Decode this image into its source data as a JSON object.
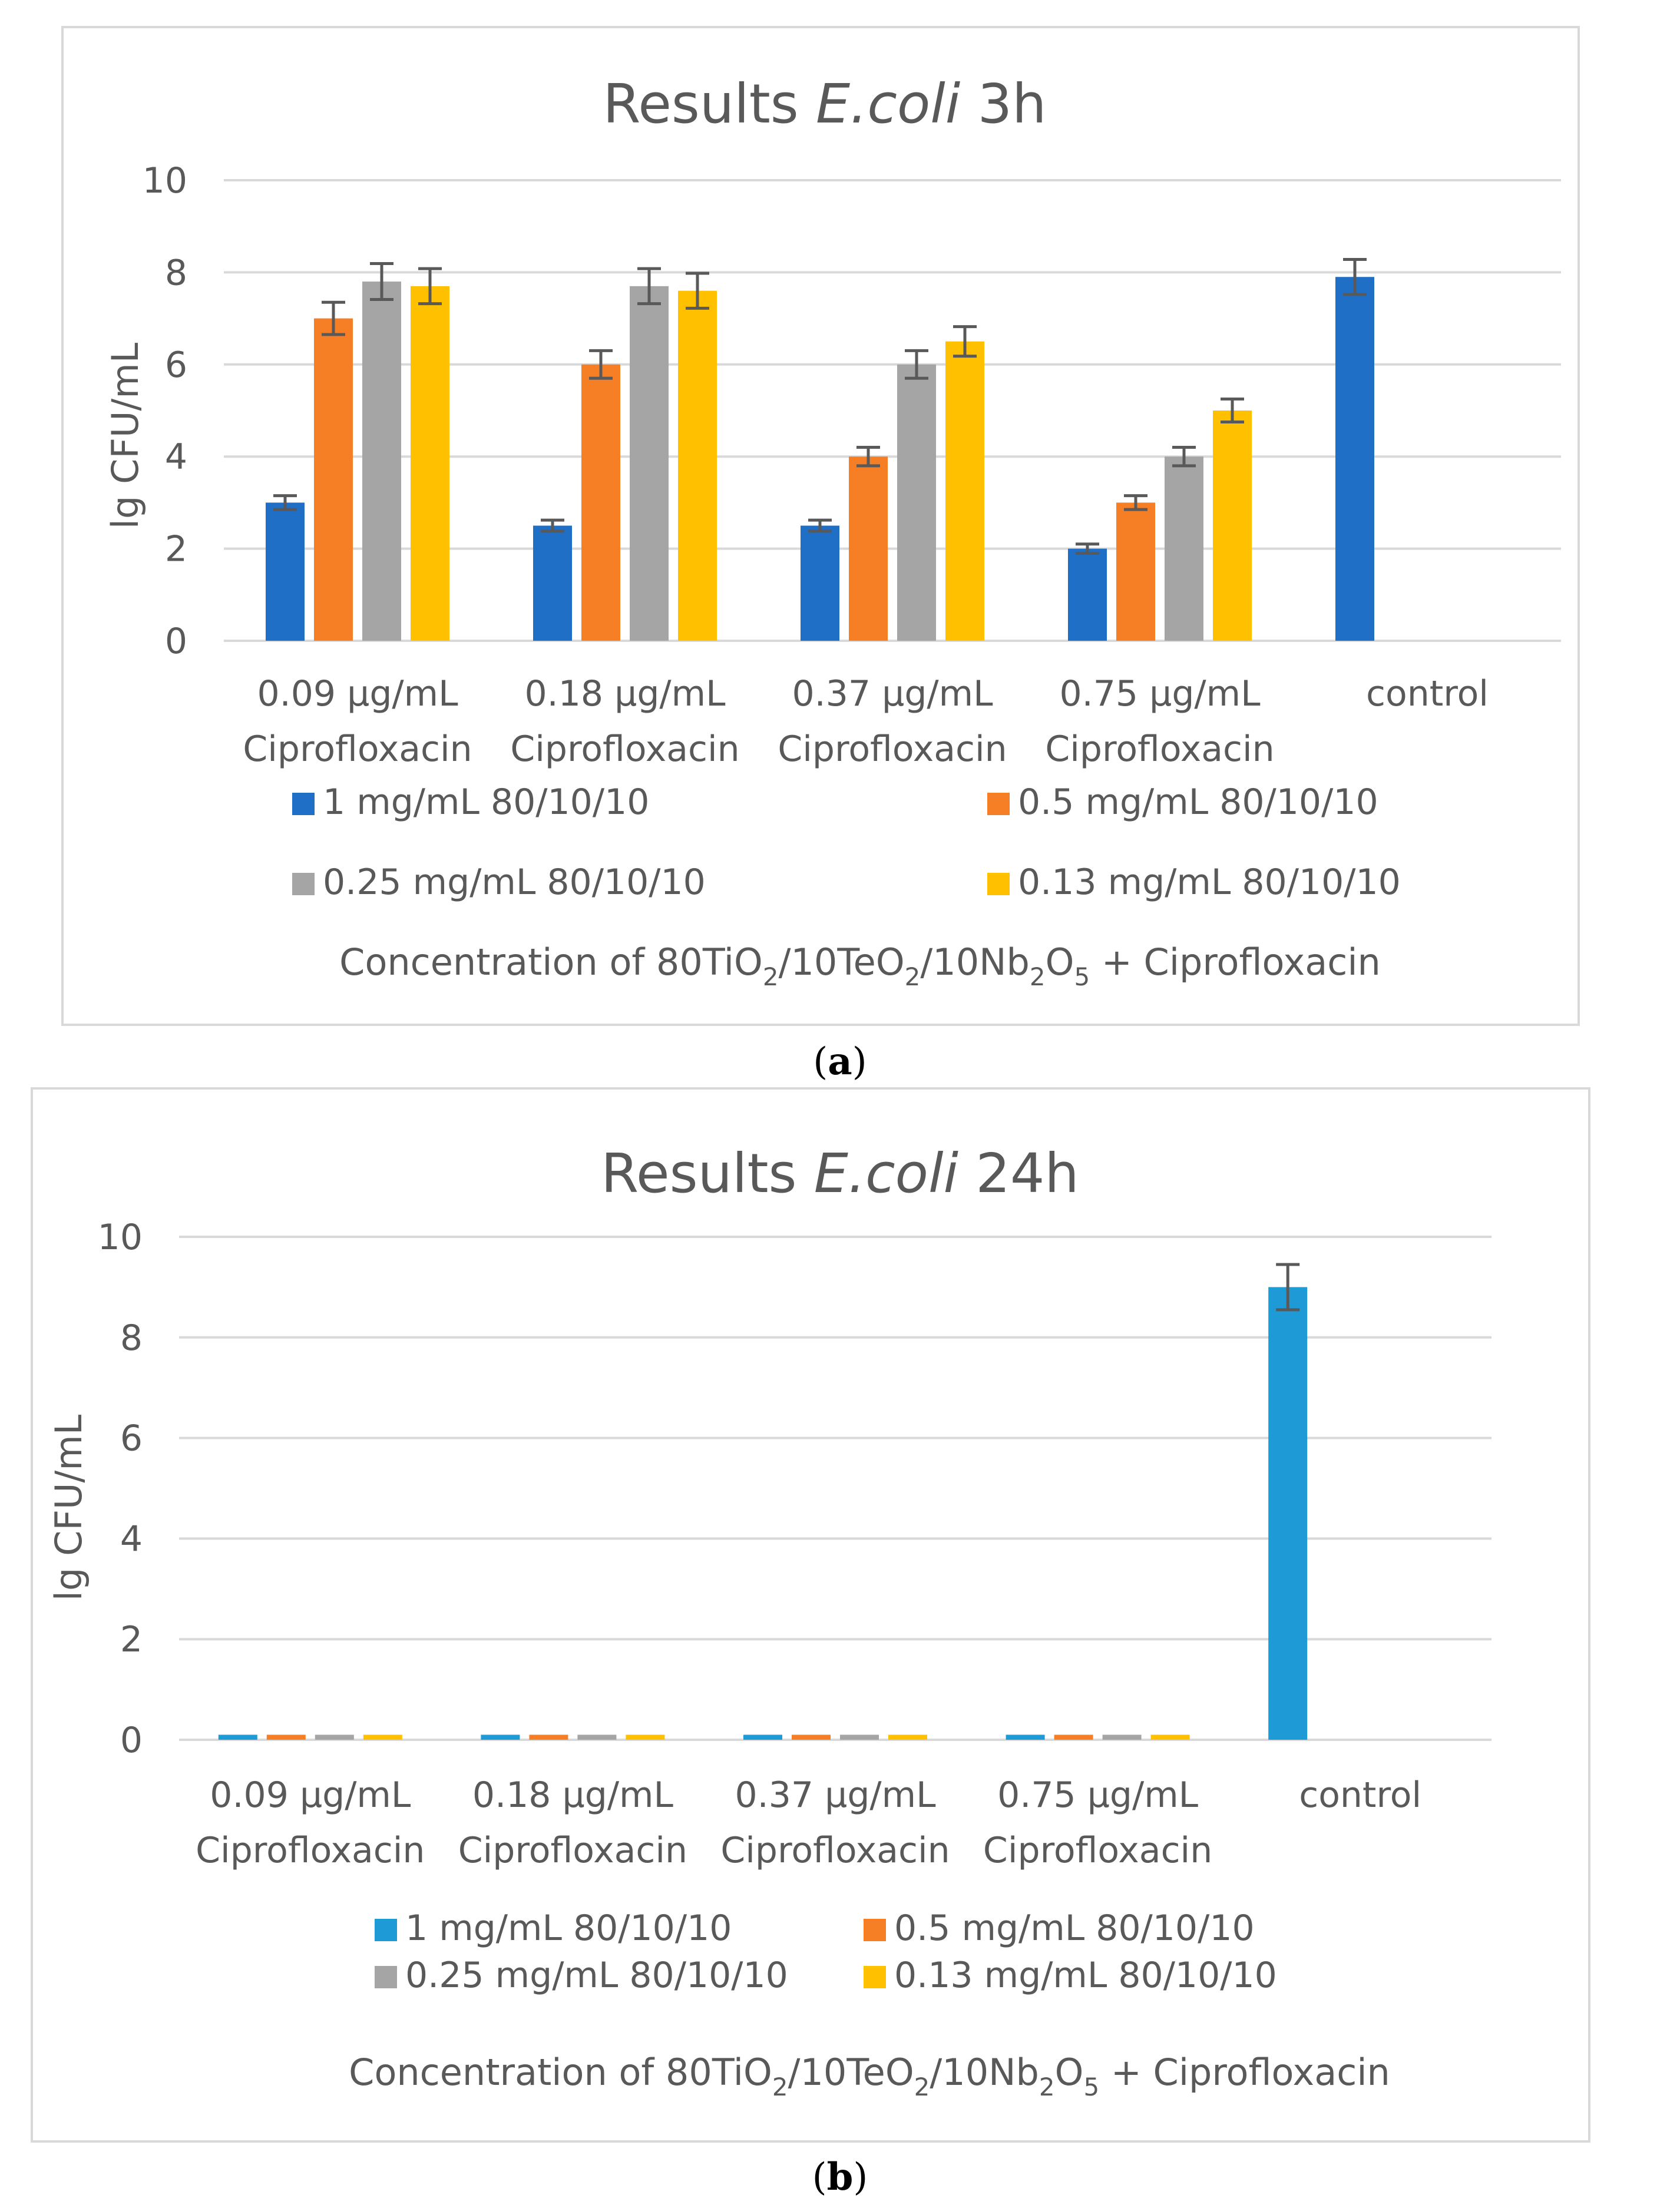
{
  "chart_data": [
    {
      "type": "bar",
      "panel_label": "(a)",
      "title": {
        "prefix": "Results ",
        "italic": "E.coli",
        "suffix": " 3h"
      },
      "ylabel": "lg  CFU/mL",
      "xlabel": {
        "text": "Concentration of 80TiO",
        "sub1": "2",
        "mid1": "/10TeO",
        "sub2": "2",
        "mid2": "/10Nb",
        "sub3": "2",
        "mid3": "O",
        "sub4": "5",
        "end": " + Ciprofloxacin"
      },
      "ylim": [
        0,
        10
      ],
      "yticks": [
        "0",
        "2",
        "4",
        "6",
        "8",
        "10"
      ],
      "grid": true,
      "legend_position": "bottom",
      "categories": [
        [
          "0.09 µg/mL",
          "Ciprofloxacin"
        ],
        [
          "0.18 µg/mL",
          "Ciprofloxacin"
        ],
        [
          "0.37 µg/mL",
          "Ciprofloxacin"
        ],
        [
          "0.75 µg/mL",
          "Ciprofloxacin"
        ],
        [
          "control"
        ]
      ],
      "series": [
        {
          "name": "1 mg/mL 80/10/10",
          "color": "#1f6fc6",
          "values": [
            3.0,
            2.5,
            2.5,
            2.0,
            7.9
          ],
          "errors": [
            0.15,
            0.12,
            0.12,
            0.1,
            0.38
          ]
        },
        {
          "name": "0.5 mg/mL 80/10/10",
          "color": "#f67e25",
          "values": [
            7.0,
            6.0,
            4.0,
            3.0,
            null
          ],
          "errors": [
            0.35,
            0.3,
            0.2,
            0.15,
            null
          ]
        },
        {
          "name": "0.25 mg/mL 80/10/10",
          "color": "#a5a5a5",
          "values": [
            7.8,
            7.7,
            6.0,
            4.0,
            null
          ],
          "errors": [
            0.39,
            0.38,
            0.3,
            0.2,
            null
          ]
        },
        {
          "name": "0.13 mg/mL 80/10/10",
          "color": "#ffc000",
          "values": [
            7.7,
            7.6,
            6.5,
            5.0,
            null
          ],
          "errors": [
            0.38,
            0.38,
            0.32,
            0.25,
            null
          ]
        }
      ]
    },
    {
      "type": "bar",
      "panel_label": "(b)",
      "title": {
        "prefix": "Results ",
        "italic": "E.coli",
        "suffix": " 24h"
      },
      "ylabel": "lg  CFU/mL",
      "xlabel": {
        "text": "Concentration of 80TiO",
        "sub1": "2",
        "mid1": "/10TeO",
        "sub2": "2",
        "mid2": "/10Nb",
        "sub3": "2",
        "mid3": "O",
        "sub4": "5",
        "end": " + Ciprofloxacin"
      },
      "ylim": [
        0,
        10
      ],
      "yticks": [
        "0",
        "2",
        "4",
        "6",
        "8",
        "10"
      ],
      "grid": true,
      "legend_position": "bottom",
      "categories": [
        [
          "0.09 µg/mL",
          "Ciprofloxacin"
        ],
        [
          "0.18 µg/mL",
          "Ciprofloxacin"
        ],
        [
          "0.37 µg/mL",
          "Ciprofloxacin"
        ],
        [
          "0.75 µg/mL",
          "Ciprofloxacin"
        ],
        [
          "control"
        ]
      ],
      "series": [
        {
          "name": "1 mg/mL 80/10/10",
          "color": "#1e9bd7",
          "values": [
            0.1,
            0.1,
            0.1,
            0.1,
            9.0
          ],
          "errors": [
            0,
            0,
            0,
            0,
            0.45
          ]
        },
        {
          "name": "0.5 mg/mL 80/10/10",
          "color": "#f67e25",
          "values": [
            0.1,
            0.1,
            0.1,
            0.1,
            null
          ],
          "errors": [
            0,
            0,
            0,
            0,
            null
          ]
        },
        {
          "name": "0.25 mg/mL 80/10/10",
          "color": "#a5a5a5",
          "values": [
            0.1,
            0.1,
            0.1,
            0.1,
            null
          ],
          "errors": [
            0,
            0,
            0,
            0,
            null
          ]
        },
        {
          "name": "0.13 mg/mL 80/10/10",
          "color": "#ffc000",
          "values": [
            0.1,
            0.1,
            0.1,
            0.1,
            null
          ],
          "errors": [
            0,
            0,
            0,
            0,
            null
          ]
        }
      ]
    }
  ]
}
